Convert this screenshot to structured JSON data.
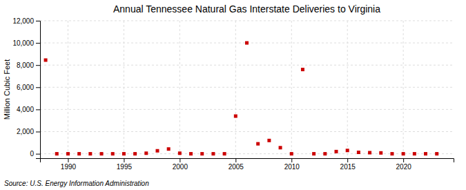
{
  "chart_data": {
    "type": "scatter",
    "title": "Annual Tennessee Natural Gas Interstate Deliveries to Virginia",
    "ylabel": "Million Cubic Feet",
    "source": "Source: U.S. Energy Information Administration",
    "color": "#cc0000",
    "marker": "square",
    "grid": true,
    "xlim": [
      1987.5,
      2024.5
    ],
    "ylim": [
      -400,
      12000
    ],
    "xticks": [
      1990,
      1995,
      2000,
      2005,
      2010,
      2015,
      2020
    ],
    "yticks": [
      0,
      {
        "value": 2000,
        "label": "2,000"
      },
      {
        "value": 4000,
        "label": "4,000"
      },
      {
        "value": 6000,
        "label": "6,000"
      },
      {
        "value": 8000,
        "label": "8,000"
      },
      {
        "value": 10000,
        "label": "10,000"
      },
      {
        "value": 12000,
        "label": "12,000"
      }
    ],
    "x": [
      1988,
      1989,
      1990,
      1991,
      1992,
      1993,
      1994,
      1995,
      1996,
      1997,
      1998,
      1999,
      2000,
      2001,
      2002,
      2003,
      2004,
      2005,
      2006,
      2007,
      2008,
      2009,
      2010,
      2011,
      2012,
      2013,
      2014,
      2015,
      2016,
      2017,
      2018,
      2019,
      2020,
      2021,
      2022,
      2023
    ],
    "values": [
      8450,
      0,
      0,
      0,
      0,
      0,
      0,
      0,
      0,
      50,
      270,
      430,
      50,
      0,
      0,
      0,
      0,
      3400,
      10000,
      900,
      1200,
      550,
      0,
      7600,
      0,
      0,
      200,
      300,
      130,
      100,
      80,
      0,
      0,
      0,
      0,
      0
    ]
  }
}
